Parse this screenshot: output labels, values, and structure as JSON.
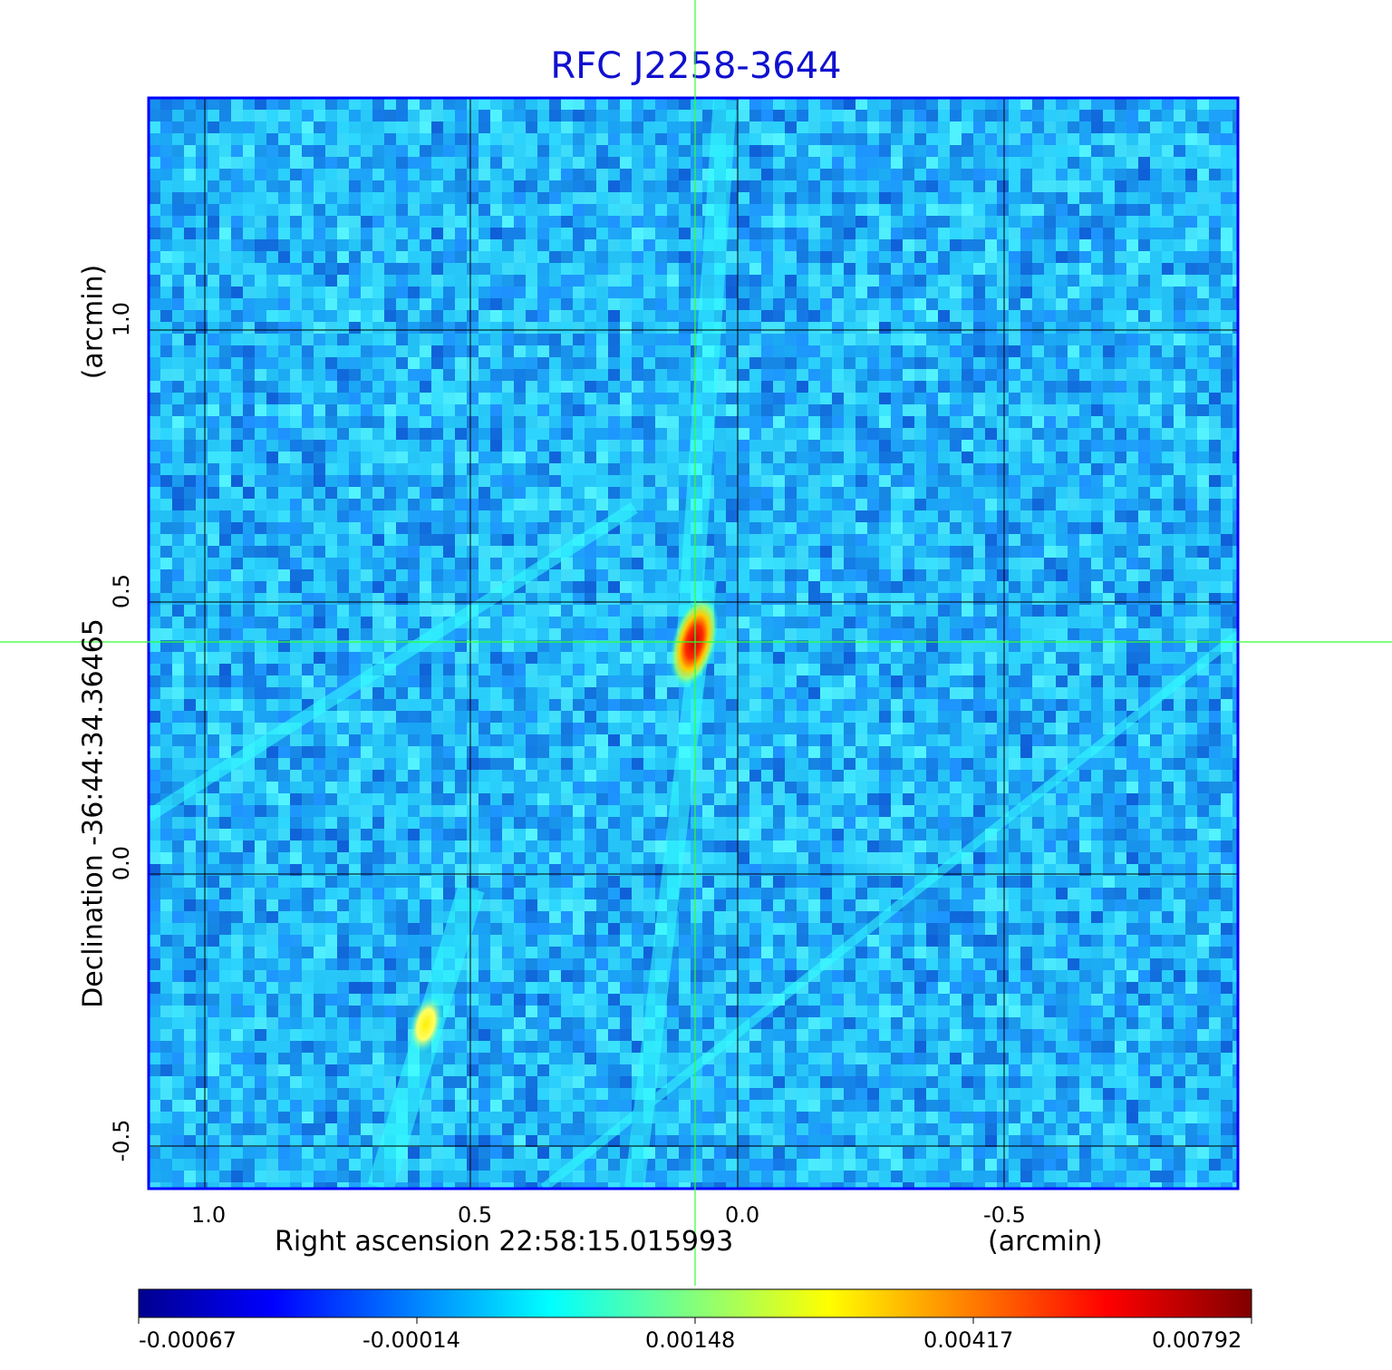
{
  "title": "RFC J2258-3644",
  "xaxis": {
    "label": "Right ascension  22:58:15.015993",
    "unit": "(arcmin)",
    "ticks": [
      "1.0",
      "0.5",
      "0.0",
      "-0.5"
    ]
  },
  "yaxis": {
    "label": "Declination  -36:44:34.36465",
    "unit": "(arcmin)",
    "ticks": [
      "1.0",
      "0.5",
      "0.0",
      "-0.5"
    ]
  },
  "colorbar": {
    "ticks": [
      "-0.00067",
      "-0.00014",
      "0.00148",
      "0.00417",
      "0.00792"
    ],
    "colors": [
      "#00008f",
      "#0000ff",
      "#00ffff",
      "#ffff00",
      "#ff0000",
      "#800000"
    ]
  },
  "colors": {
    "title": "#1010d0",
    "frame": "#0000ff",
    "crosshair": "#33ff33",
    "grid": "#000000"
  }
}
